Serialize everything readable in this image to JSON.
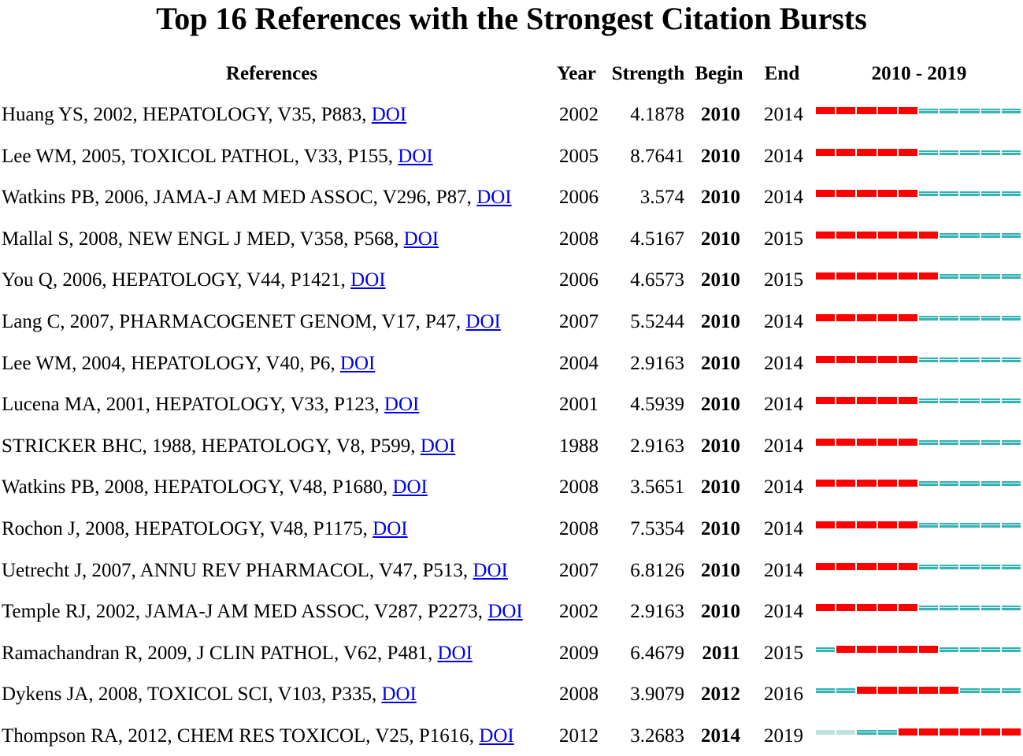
{
  "title": "Top 16 References with the Strongest Citation Bursts",
  "headers": {
    "references": "References",
    "year": "Year",
    "strength": "Strength",
    "begin": "Begin",
    "end": "End",
    "range": "2010 - 2019"
  },
  "colors": {
    "burst": "#ff0000",
    "active": "#33b3b3",
    "before_published": "#bfe3e3",
    "link": "#0000ee"
  },
  "chart_data": {
    "type": "table",
    "title": "Top 16 References with the Strongest Citation Bursts",
    "range_start": 2010,
    "range_end": 2019,
    "columns": [
      "References",
      "Year",
      "Strength",
      "Begin",
      "End",
      "2010 - 2019"
    ],
    "rows": [
      {
        "ref": "Huang YS, 2002, HEPATOLOGY, V35, P883,",
        "doi": "DOI",
        "year": "2002",
        "strength": "4.1878",
        "begin": "2010",
        "end": "2014"
      },
      {
        "ref": "Lee WM, 2005, TOXICOL PATHOL, V33, P155,",
        "doi": "DOI",
        "year": "2005",
        "strength": "8.7641",
        "begin": "2010",
        "end": "2014"
      },
      {
        "ref": "Watkins PB, 2006, JAMA-J AM MED ASSOC, V296, P87,",
        "doi": "DOI",
        "year": "2006",
        "strength": "3.574",
        "begin": "2010",
        "end": "2014"
      },
      {
        "ref": "Mallal S, 2008, NEW ENGL J MED, V358, P568,",
        "doi": "DOI",
        "year": "2008",
        "strength": "4.5167",
        "begin": "2010",
        "end": "2015"
      },
      {
        "ref": "You Q, 2006, HEPATOLOGY, V44, P1421,",
        "doi": "DOI",
        "year": "2006",
        "strength": "4.6573",
        "begin": "2010",
        "end": "2015"
      },
      {
        "ref": "Lang C, 2007, PHARMACOGENET GENOM, V17, P47,",
        "doi": "DOI",
        "year": "2007",
        "strength": "5.5244",
        "begin": "2010",
        "end": "2014"
      },
      {
        "ref": "Lee WM, 2004, HEPATOLOGY, V40, P6,",
        "doi": "DOI",
        "year": "2004",
        "strength": "2.9163",
        "begin": "2010",
        "end": "2014"
      },
      {
        "ref": "Lucena MA, 2001, HEPATOLOGY, V33, P123,",
        "doi": "DOI",
        "year": "2001",
        "strength": "4.5939",
        "begin": "2010",
        "end": "2014"
      },
      {
        "ref": "STRICKER BHC, 1988, HEPATOLOGY, V8, P599,",
        "doi": "DOI",
        "year": "1988",
        "strength": "2.9163",
        "begin": "2010",
        "end": "2014"
      },
      {
        "ref": "Watkins PB, 2008, HEPATOLOGY, V48, P1680,",
        "doi": "DOI",
        "year": "2008",
        "strength": "3.5651",
        "begin": "2010",
        "end": "2014"
      },
      {
        "ref": "Rochon J, 2008, HEPATOLOGY, V48, P1175,",
        "doi": "DOI",
        "year": "2008",
        "strength": "7.5354",
        "begin": "2010",
        "end": "2014"
      },
      {
        "ref": "Uetrecht J, 2007, ANNU REV PHARMACOL, V47, P513,",
        "doi": "DOI",
        "year": "2007",
        "strength": "6.8126",
        "begin": "2010",
        "end": "2014"
      },
      {
        "ref": "Temple RJ, 2002, JAMA-J AM MED ASSOC, V287, P2273,",
        "doi": "DOI",
        "year": "2002",
        "strength": "2.9163",
        "begin": "2010",
        "end": "2014"
      },
      {
        "ref": "Ramachandran R, 2009, J CLIN PATHOL, V62, P481,",
        "doi": "DOI",
        "year": "2009",
        "strength": "6.4679",
        "begin": "2011",
        "end": "2015"
      },
      {
        "ref": "Dykens JA, 2008, TOXICOL SCI, V103, P335,",
        "doi": "DOI",
        "year": "2008",
        "strength": "3.9079",
        "begin": "2012",
        "end": "2016"
      },
      {
        "ref": "Thompson RA, 2012, CHEM RES TOXICOL, V25, P1616,",
        "doi": "DOI",
        "year": "2012",
        "strength": "3.2683",
        "begin": "2014",
        "end": "2019"
      }
    ]
  }
}
